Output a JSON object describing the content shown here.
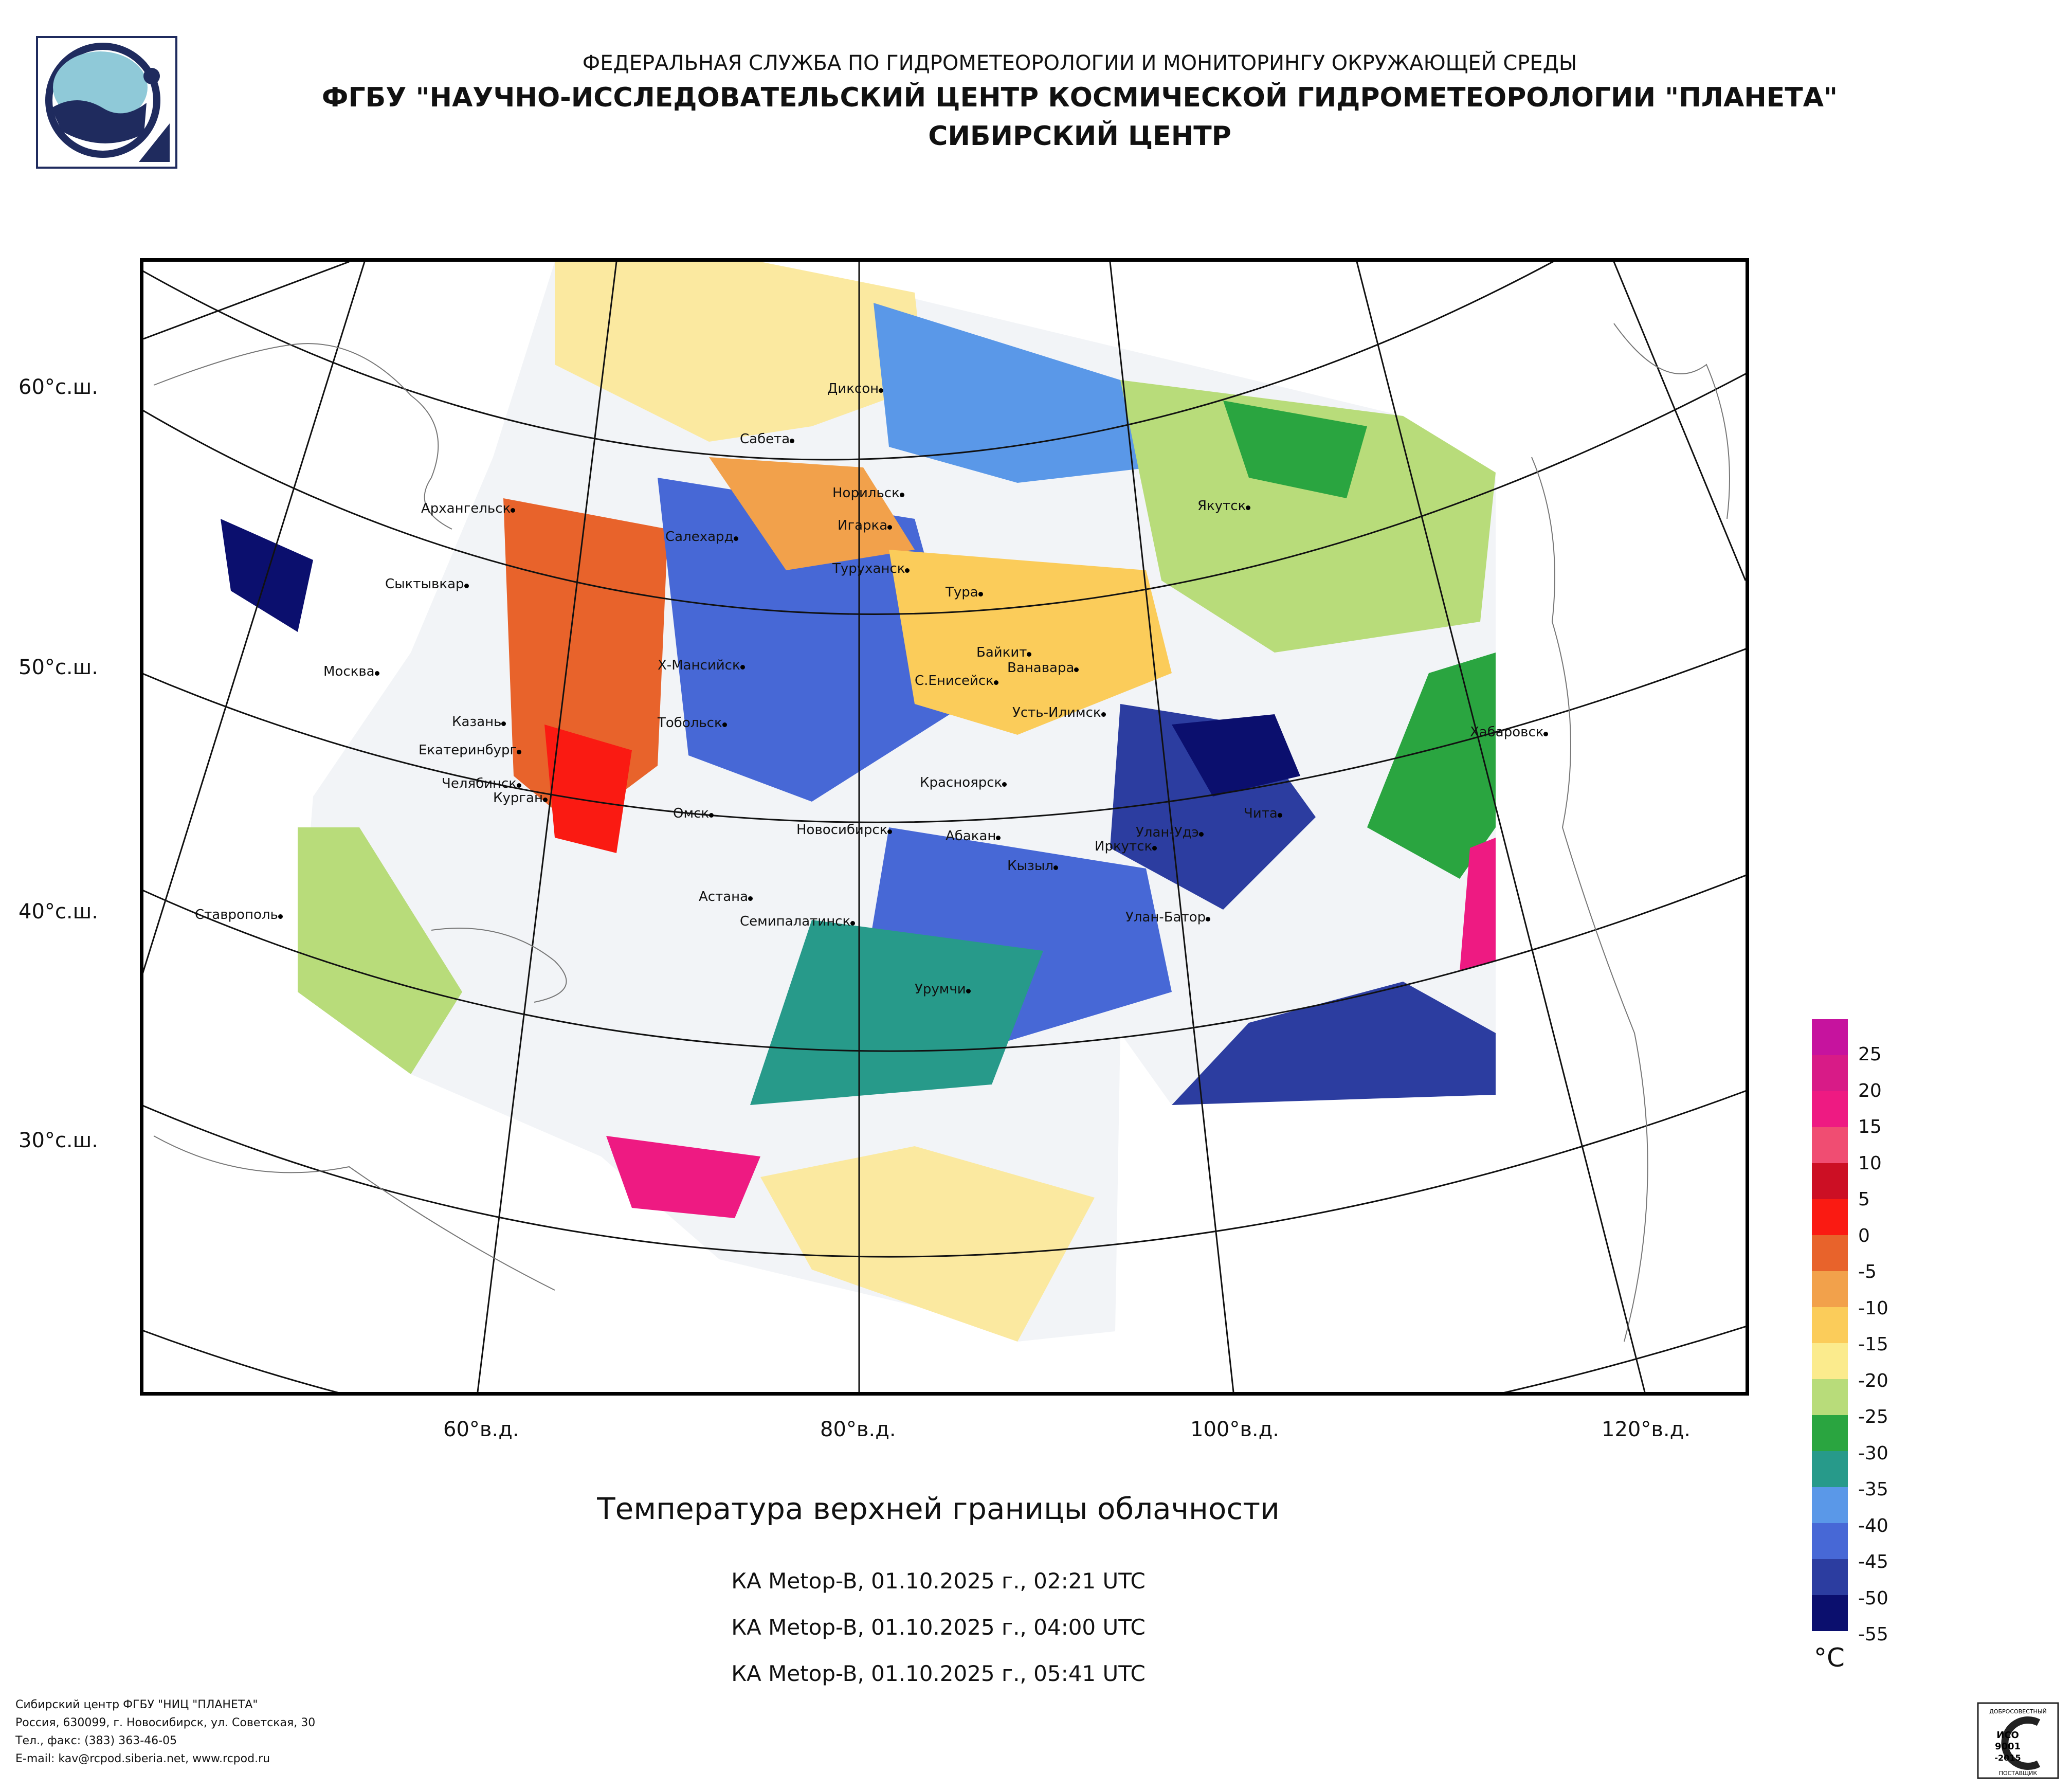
{
  "header": {
    "line1": "ФЕДЕРАЛЬНАЯ СЛУЖБА ПО ГИДРОМЕТЕОРОЛОГИИ И МОНИТОРИНГУ ОКРУЖАЮЩЕЙ СРЕДЫ",
    "line2": "ФГБУ \"НАУЧНО-ИССЛЕДОВАТЕЛЬСКИЙ ЦЕНТР КОСМИЧЕСКОЙ ГИДРОМЕТЕОРОЛОГИИ \"ПЛАНЕТА\"",
    "line3": "СИБИРСКИЙ ЦЕНТР"
  },
  "map": {
    "lat_labels": [
      "60°с.ш.",
      "50°с.ш.",
      "40°с.ш.",
      "30°с.ш."
    ],
    "lon_labels": [
      "60°в.д.",
      "80°в.д.",
      "100°в.д.",
      "120°в.д."
    ],
    "cities": [
      "Диксон",
      "Сабета",
      "Норильск",
      "Игарка",
      "Архангельск",
      "Салехард",
      "Туруханск",
      "Тура",
      "Якутск",
      "Сыктывкар",
      "Байкит",
      "Ванавара",
      "Москва",
      "Х-Мансийск",
      "С.Енисейск",
      "Усть-Илимск",
      "Казань",
      "Тобольск",
      "Хабаровск",
      "Екатеринбург",
      "Челябинск",
      "Курган",
      "Красноярск",
      "Омск",
      "Новосибирск",
      "Чита",
      "Улан-Удэ",
      "Абакан",
      "Иркутск",
      "Кызыл",
      "Астана",
      "Ставрополь",
      "Семипалатинск",
      "Улан-Батор",
      "Урумчи"
    ]
  },
  "title": "Температура верхней границы облачности",
  "passes": [
    "КА Metop-B, 01.10.2025 г., 02:21 UTC",
    "КА Metop-B, 01.10.2025 г., 04:00 UTC",
    "КА Metop-B, 01.10.2025 г., 05:41 UTC"
  ],
  "legend": {
    "unit": "°C",
    "labels": [
      "25",
      "20",
      "15",
      "10",
      "5",
      "0",
      "-5",
      "-10",
      "-15",
      "-20",
      "-25",
      "-30",
      "-35",
      "-40",
      "-45",
      "-50",
      "-55"
    ],
    "colors": [
      "#c6139e",
      "#d81b87",
      "#ee1a82",
      "#f04d72",
      "#cc0f24",
      "#fa1a12",
      "#e8632b",
      "#f2a14b",
      "#fbcc5a",
      "#fbeb8d",
      "#b8dc7a",
      "#2aa540",
      "#279a8a",
      "#5a98e8",
      "#4768d6",
      "#2c3da0",
      "#0b0f6e"
    ]
  },
  "footer": {
    "line1": "Сибирский центр ФГБУ \"НИЦ \"ПЛАНЕТА\"",
    "line2": "Россия, 630099, г. Новосибирск, ул. Советская, 30",
    "line3": "Тел., факс: (383) 363-46-05",
    "line4": "E-mail: kav@rcpod.siberia.net, www.rcpod.ru"
  },
  "cert": {
    "top": "ДОБРОСОВЕСТНЫЙ",
    "iso": "ИСО",
    "num": "9001",
    "year": "-2015",
    "bottom": "ПОСТАВЩИК"
  }
}
